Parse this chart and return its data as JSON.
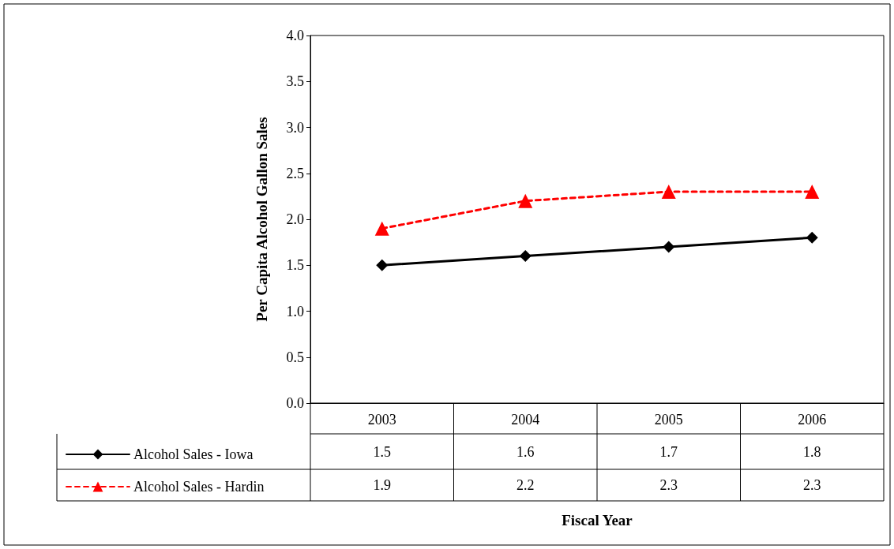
{
  "chart_data": {
    "type": "line",
    "annotations": [
      "Fiscal Year"
    ],
    "ylabel": "Per Capita Alcohol Gallon Sales",
    "categories": [
      "2003",
      "2004",
      "2005",
      "2006"
    ],
    "series": [
      {
        "name": "Alcohol Sales - Iowa",
        "color": "#000000",
        "values": [
          1.5,
          1.6,
          1.7,
          1.8
        ],
        "marker": "diamond",
        "line_style": "solid"
      },
      {
        "name": "Alcohol Sales - Hardin",
        "color": "#ff0000",
        "values": [
          1.9,
          2.2,
          2.3,
          2.3
        ],
        "marker": "triangle",
        "line_style": "dashed"
      }
    ],
    "ylim": [
      0,
      4
    ],
    "yticks": [
      {
        "value": 0,
        "label": "0.0"
      },
      0.5,
      {
        "value": 1,
        "label": "1.0"
      },
      1.5,
      {
        "value": 2,
        "label": "2.0"
      },
      2.5,
      {
        "value": 3,
        "label": "3.0"
      },
      3.5,
      {
        "value": 4,
        "label": "4.0"
      }
    ],
    "grid": false,
    "legend": "bottom left",
    "data_labels": true
  }
}
